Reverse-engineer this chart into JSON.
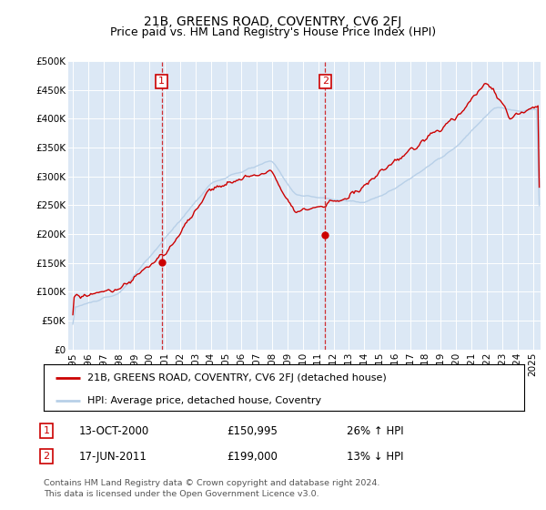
{
  "title": "21B, GREENS ROAD, COVENTRY, CV6 2FJ",
  "subtitle": "Price paid vs. HM Land Registry's House Price Index (HPI)",
  "ylabel_ticks": [
    "£0",
    "£50K",
    "£100K",
    "£150K",
    "£200K",
    "£250K",
    "£300K",
    "£350K",
    "£400K",
    "£450K",
    "£500K"
  ],
  "ytick_values": [
    0,
    50000,
    100000,
    150000,
    200000,
    250000,
    300000,
    350000,
    400000,
    450000,
    500000
  ],
  "ylim": [
    0,
    500000
  ],
  "xlim_start": 1994.7,
  "xlim_end": 2025.5,
  "hpi_color": "#b8d0e8",
  "price_color": "#cc0000",
  "bg_color": "#dce8f5",
  "marker1_x": 2000.79,
  "marker1_y": 150995,
  "marker1_label": "13-OCT-2000",
  "marker1_price": "£150,995",
  "marker1_hpi": "26% ↑ HPI",
  "marker2_x": 2011.46,
  "marker2_y": 199000,
  "marker2_label": "17-JUN-2011",
  "marker2_price": "£199,000",
  "marker2_hpi": "13% ↓ HPI",
  "legend_line1": "21B, GREENS ROAD, COVENTRY, CV6 2FJ (detached house)",
  "legend_line2": "HPI: Average price, detached house, Coventry",
  "footer": "Contains HM Land Registry data © Crown copyright and database right 2024.\nThis data is licensed under the Open Government Licence v3.0.",
  "title_fontsize": 10,
  "subtitle_fontsize": 9,
  "tick_fontsize": 7.5
}
